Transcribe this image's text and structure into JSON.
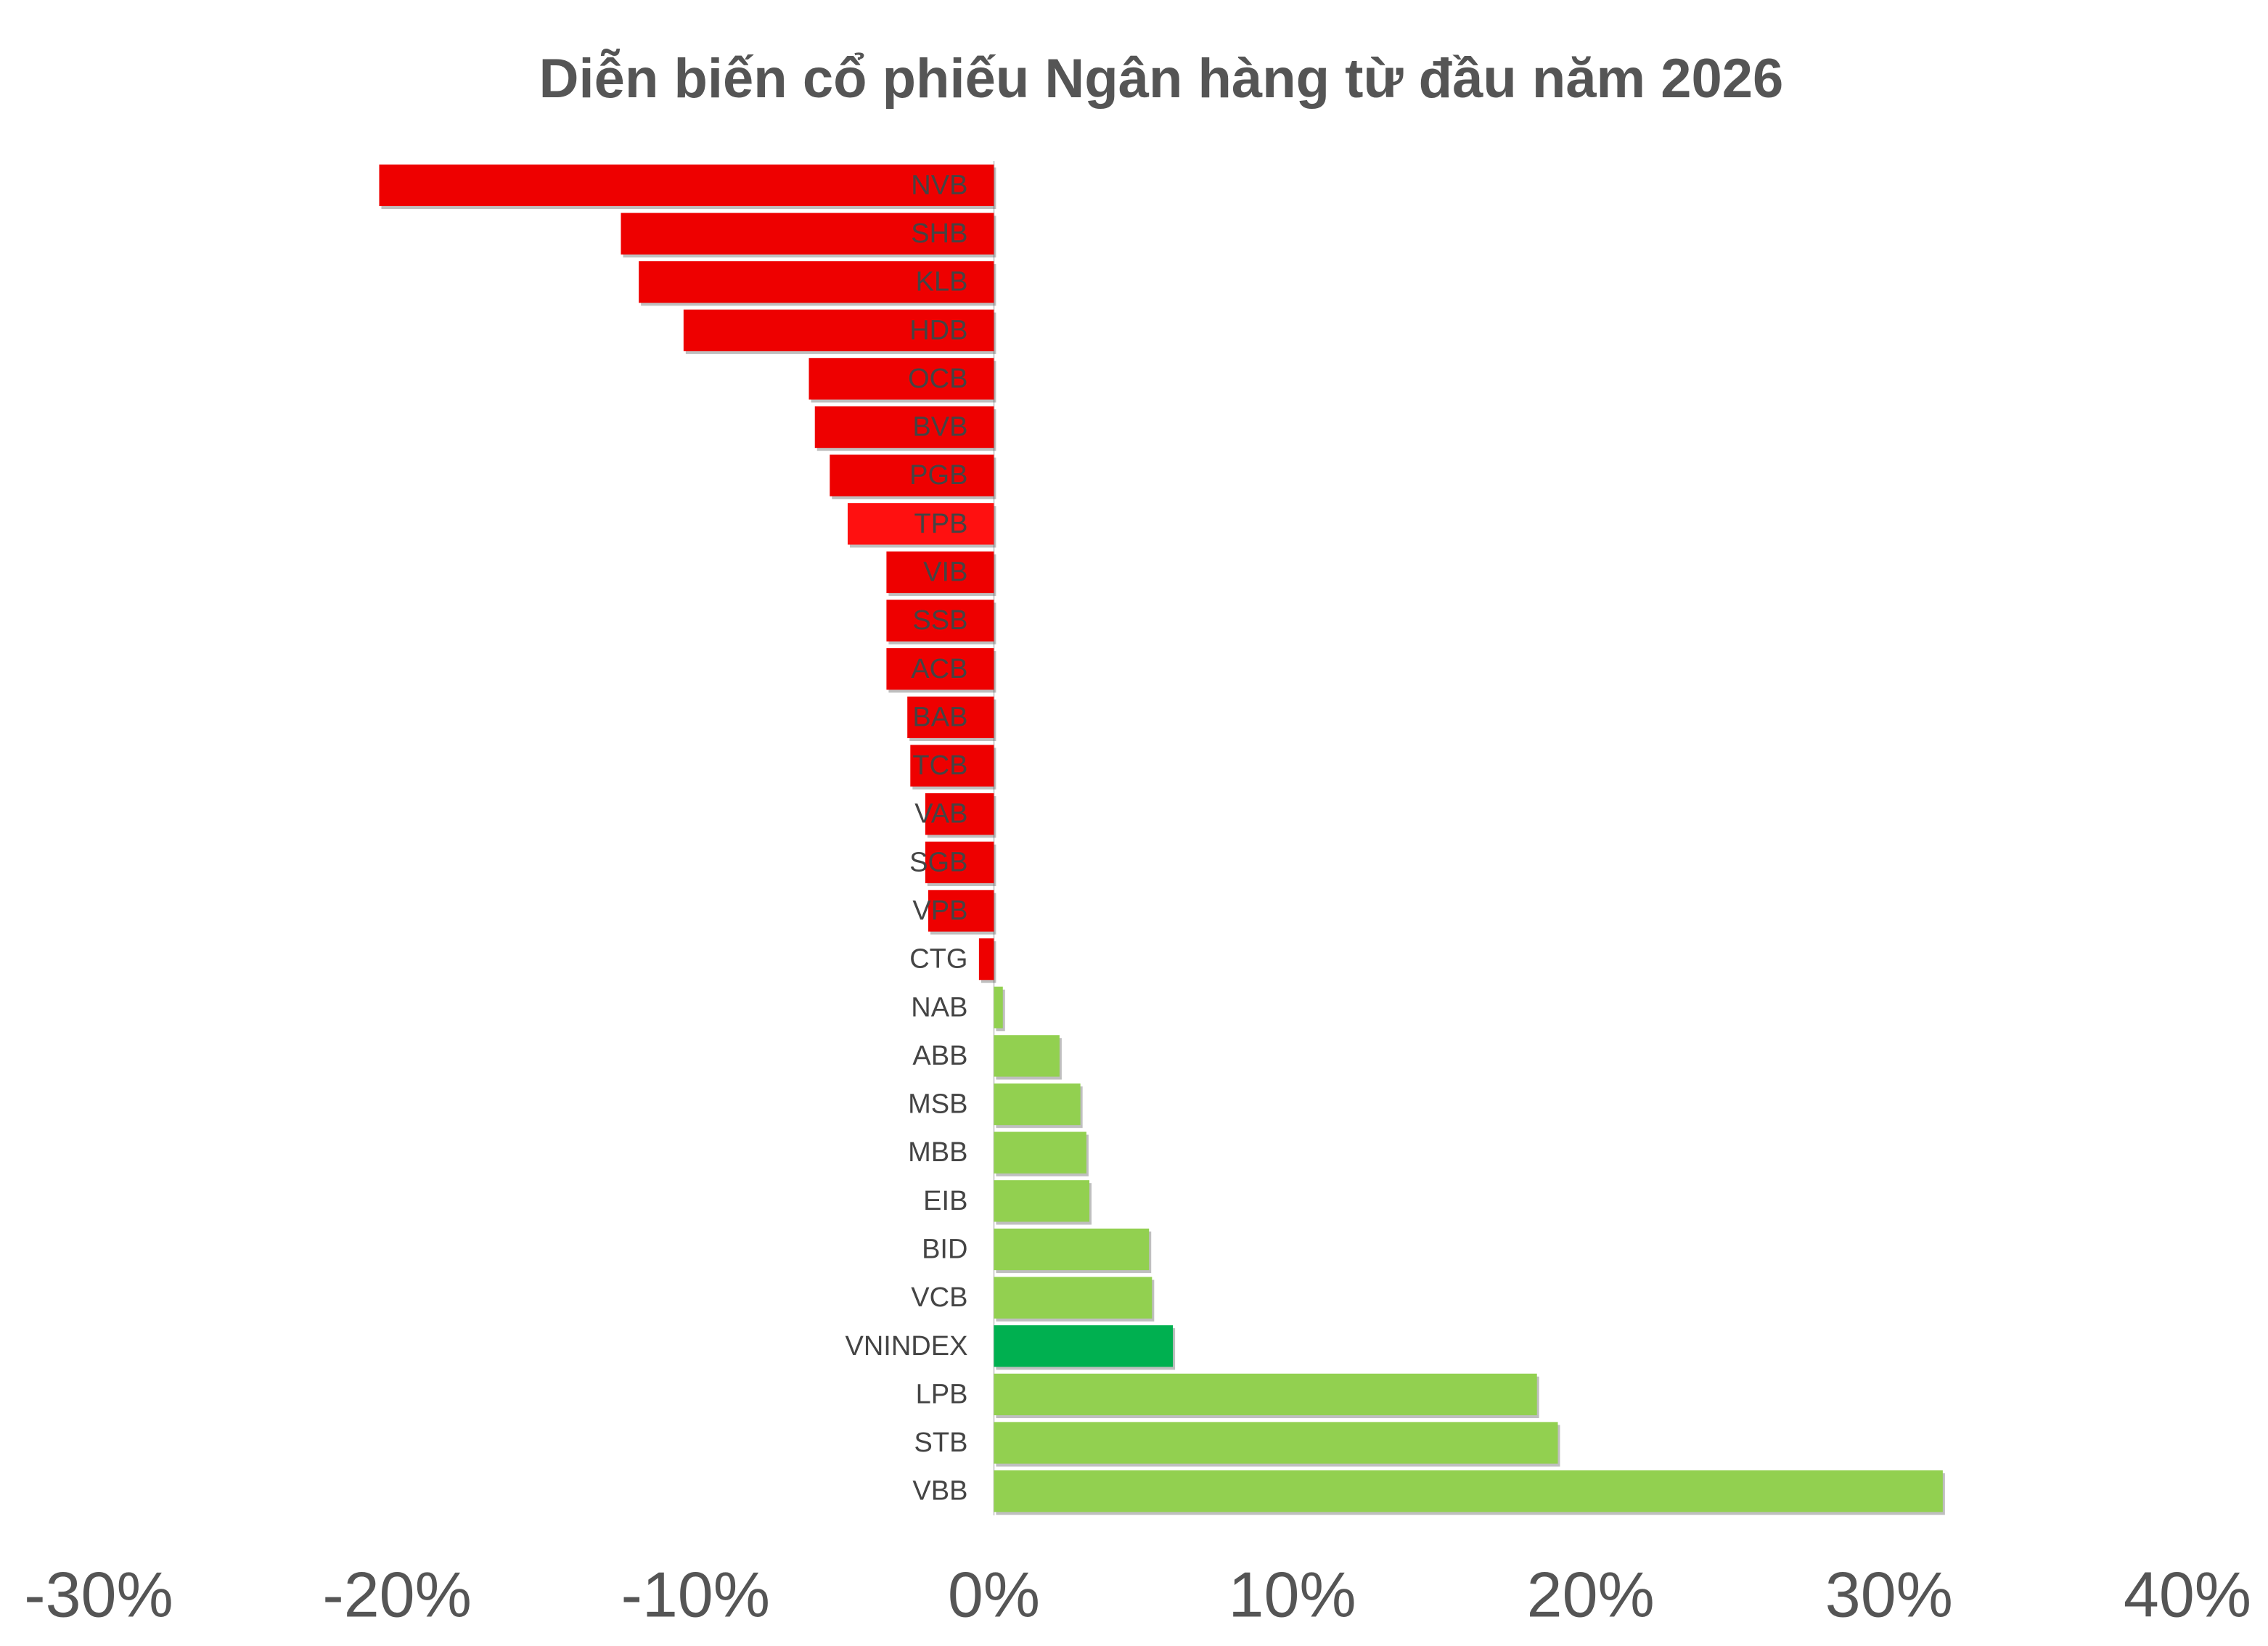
{
  "chart_data": {
    "type": "bar",
    "orientation": "horizontal",
    "title": "Diễn biến cổ phiếu Ngân hàng từ đầu năm 2026",
    "categories": [
      "NVB",
      "SHB",
      "KLB",
      "HDB",
      "OCB",
      "BVB",
      "PGB",
      "TPB",
      "VIB",
      "SSB",
      "ACB",
      "BAB",
      "TCB",
      "VAB",
      "SGB",
      "VPB",
      "CTG",
      "NAB",
      "ABB",
      "MSB",
      "MBB",
      "EIB",
      "BID",
      "VCB",
      "VNINDEX",
      "LPB",
      "STB",
      "VBB"
    ],
    "values": [
      -20.6,
      -12.5,
      -11.9,
      -10.4,
      -6.2,
      -6.0,
      -5.5,
      -4.9,
      -3.6,
      -3.6,
      -3.6,
      -2.9,
      -2.8,
      -2.3,
      -2.3,
      -2.2,
      -0.5,
      0.3,
      2.2,
      2.9,
      3.1,
      3.2,
      5.2,
      5.3,
      6.0,
      18.2,
      18.9,
      31.8
    ],
    "colors": [
      "#ee0000",
      "#ee0000",
      "#ee0000",
      "#ee0000",
      "#ee0000",
      "#ee0000",
      "#ee0000",
      "#ff1010",
      "#ee0000",
      "#ee0000",
      "#ee0000",
      "#ee0000",
      "#ee0000",
      "#ee0000",
      "#ee0000",
      "#ee0000",
      "#ee0000",
      "#92d050",
      "#92d050",
      "#92d050",
      "#92d050",
      "#92d050",
      "#92d050",
      "#92d050",
      "#00b050",
      "#92d050",
      "#92d050",
      "#92d050"
    ],
    "xlim": [
      -30,
      40
    ],
    "xticks": [
      {
        "value": -30,
        "label": "-30%"
      },
      {
        "value": -20,
        "label": "-20%"
      },
      {
        "value": -10,
        "label": "-10%"
      },
      {
        "value": 0,
        "label": "0%"
      },
      {
        "value": 10,
        "label": "10%"
      },
      {
        "value": 20,
        "label": "20%"
      },
      {
        "value": 30,
        "label": "30%"
      },
      {
        "value": 40,
        "label": "40%"
      }
    ],
    "grid": false
  }
}
